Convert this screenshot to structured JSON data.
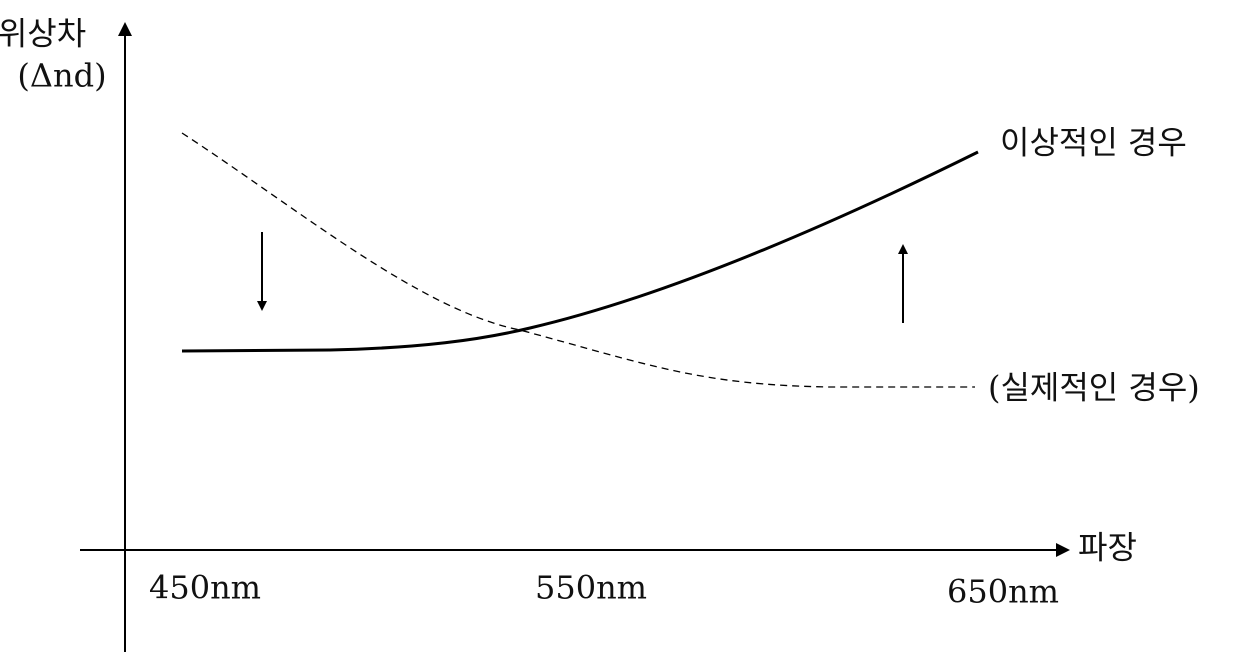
{
  "axes": {
    "y_label": "위상차",
    "y_unit": "(Δnd)",
    "x_label": "파장",
    "x_ticks": [
      "450nm",
      "550nm",
      "650nm"
    ]
  },
  "curves": [
    {
      "label": "이상적인 경우"
    },
    {
      "label": "(실제적인 경우)"
    }
  ]
}
